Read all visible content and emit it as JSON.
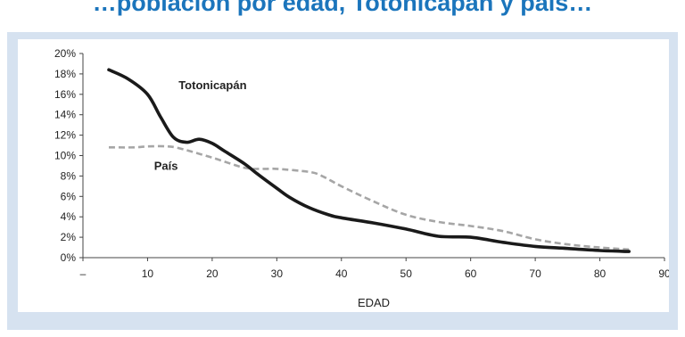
{
  "title_fragment": "…población por edad, Totonicapán y país…",
  "chart_data": {
    "type": "line",
    "title": "",
    "xlabel": "EDAD",
    "ylabel": "",
    "xlim": [
      0,
      90
    ],
    "ylim": [
      0,
      20
    ],
    "x_ticks": [
      {
        "value": 0,
        "label": "–"
      },
      {
        "value": 10,
        "label": "10"
      },
      {
        "value": 20,
        "label": "20"
      },
      {
        "value": 30,
        "label": "30"
      },
      {
        "value": 40,
        "label": "40"
      },
      {
        "value": 50,
        "label": "50"
      },
      {
        "value": 60,
        "label": "60"
      },
      {
        "value": 70,
        "label": "70"
      },
      {
        "value": 80,
        "label": "80"
      },
      {
        "value": 90,
        "label": "90"
      }
    ],
    "y_ticks": [
      {
        "value": 0,
        "label": "0%"
      },
      {
        "value": 2,
        "label": "2%"
      },
      {
        "value": 4,
        "label": "4%"
      },
      {
        "value": 6,
        "label": "6%"
      },
      {
        "value": 8,
        "label": "8%"
      },
      {
        "value": 10,
        "label": "10%"
      },
      {
        "value": 12,
        "label": "12%"
      },
      {
        "value": 14,
        "label": "14%"
      },
      {
        "value": 16,
        "label": "16%"
      },
      {
        "value": 18,
        "label": "18%"
      },
      {
        "value": 20,
        "label": "20%"
      }
    ],
    "grid": false,
    "legend": "none",
    "series": [
      {
        "name": "Totonicapán",
        "color": "#1a1a1a",
        "style": "solid",
        "x": [
          4,
          7,
          10,
          12,
          14,
          16,
          18,
          20,
          22,
          25,
          27,
          30,
          32,
          35,
          38,
          40,
          45,
          50,
          55,
          60,
          65,
          70,
          75,
          80,
          84.5
        ],
        "y": [
          18.4,
          17.5,
          16,
          13.8,
          11.8,
          11.3,
          11.6,
          11.2,
          10.4,
          9.2,
          8.2,
          6.8,
          5.9,
          4.9,
          4.2,
          3.9,
          3.4,
          2.8,
          2.1,
          2.0,
          1.5,
          1.1,
          0.9,
          0.7,
          0.6
        ]
      },
      {
        "name": "País",
        "color": "#a6a6a6",
        "style": "dashed",
        "x": [
          4,
          8,
          10,
          13,
          15,
          20,
          25,
          28,
          30,
          35,
          37,
          40,
          45,
          50,
          55,
          60,
          65,
          70,
          75,
          80,
          84.5
        ],
        "y": [
          10.8,
          10.8,
          10.9,
          10.9,
          10.7,
          9.8,
          8.8,
          8.7,
          8.7,
          8.4,
          8.0,
          7.0,
          5.5,
          4.2,
          3.5,
          3.1,
          2.6,
          1.8,
          1.3,
          1.0,
          0.8
        ]
      }
    ],
    "annotations": [
      {
        "text": "Totonicapán",
        "x": 14.8,
        "y": 16.5
      },
      {
        "text": "País",
        "x": 11,
        "y": 8.6
      }
    ]
  }
}
